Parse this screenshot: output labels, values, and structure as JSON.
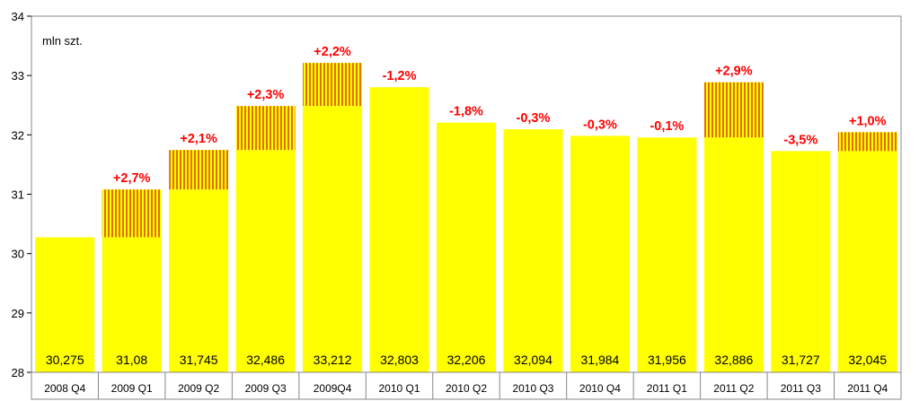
{
  "chart_data": {
    "type": "bar",
    "unit_label": "mln szt.",
    "categories": [
      "2008 Q4",
      "2009 Q1",
      "2009 Q2",
      "2009 Q3",
      "2009Q4",
      "2010 Q1",
      "2010 Q2",
      "2010 Q3",
      "2010 Q4",
      "2011 Q1",
      "2011 Q2",
      "2011 Q3",
      "2011 Q4"
    ],
    "values": [
      30.275,
      31.08,
      31.745,
      32.486,
      33.212,
      32.803,
      32.206,
      32.094,
      31.984,
      31.956,
      32.886,
      31.727,
      32.045
    ],
    "value_labels": [
      "30,275",
      "31,08",
      "31,745",
      "32,486",
      "33,212",
      "32,803",
      "32,206",
      "32,094",
      "31,984",
      "31,956",
      "32,886",
      "31,727",
      "32,045"
    ],
    "change_labels": [
      "",
      "+2,7%",
      "+2,1%",
      "+2,3%",
      "+2,2%",
      "-1,2%",
      "-1,8%",
      "-0,3%",
      "-0,3%",
      "-0,1%",
      "+2,9%",
      "-3,5%",
      "+1,0%"
    ],
    "ylim": [
      28,
      34
    ],
    "yticks": [
      "28",
      "29",
      "30",
      "31",
      "32",
      "33",
      "34"
    ],
    "grid": false,
    "legend": "none",
    "colors": {
      "bar_fill": "#ffff00",
      "hatch_orange": "#e07000",
      "hatch_yellow": "#ffff00",
      "change_text": "#ff0000",
      "plot_border": "#888888"
    }
  }
}
